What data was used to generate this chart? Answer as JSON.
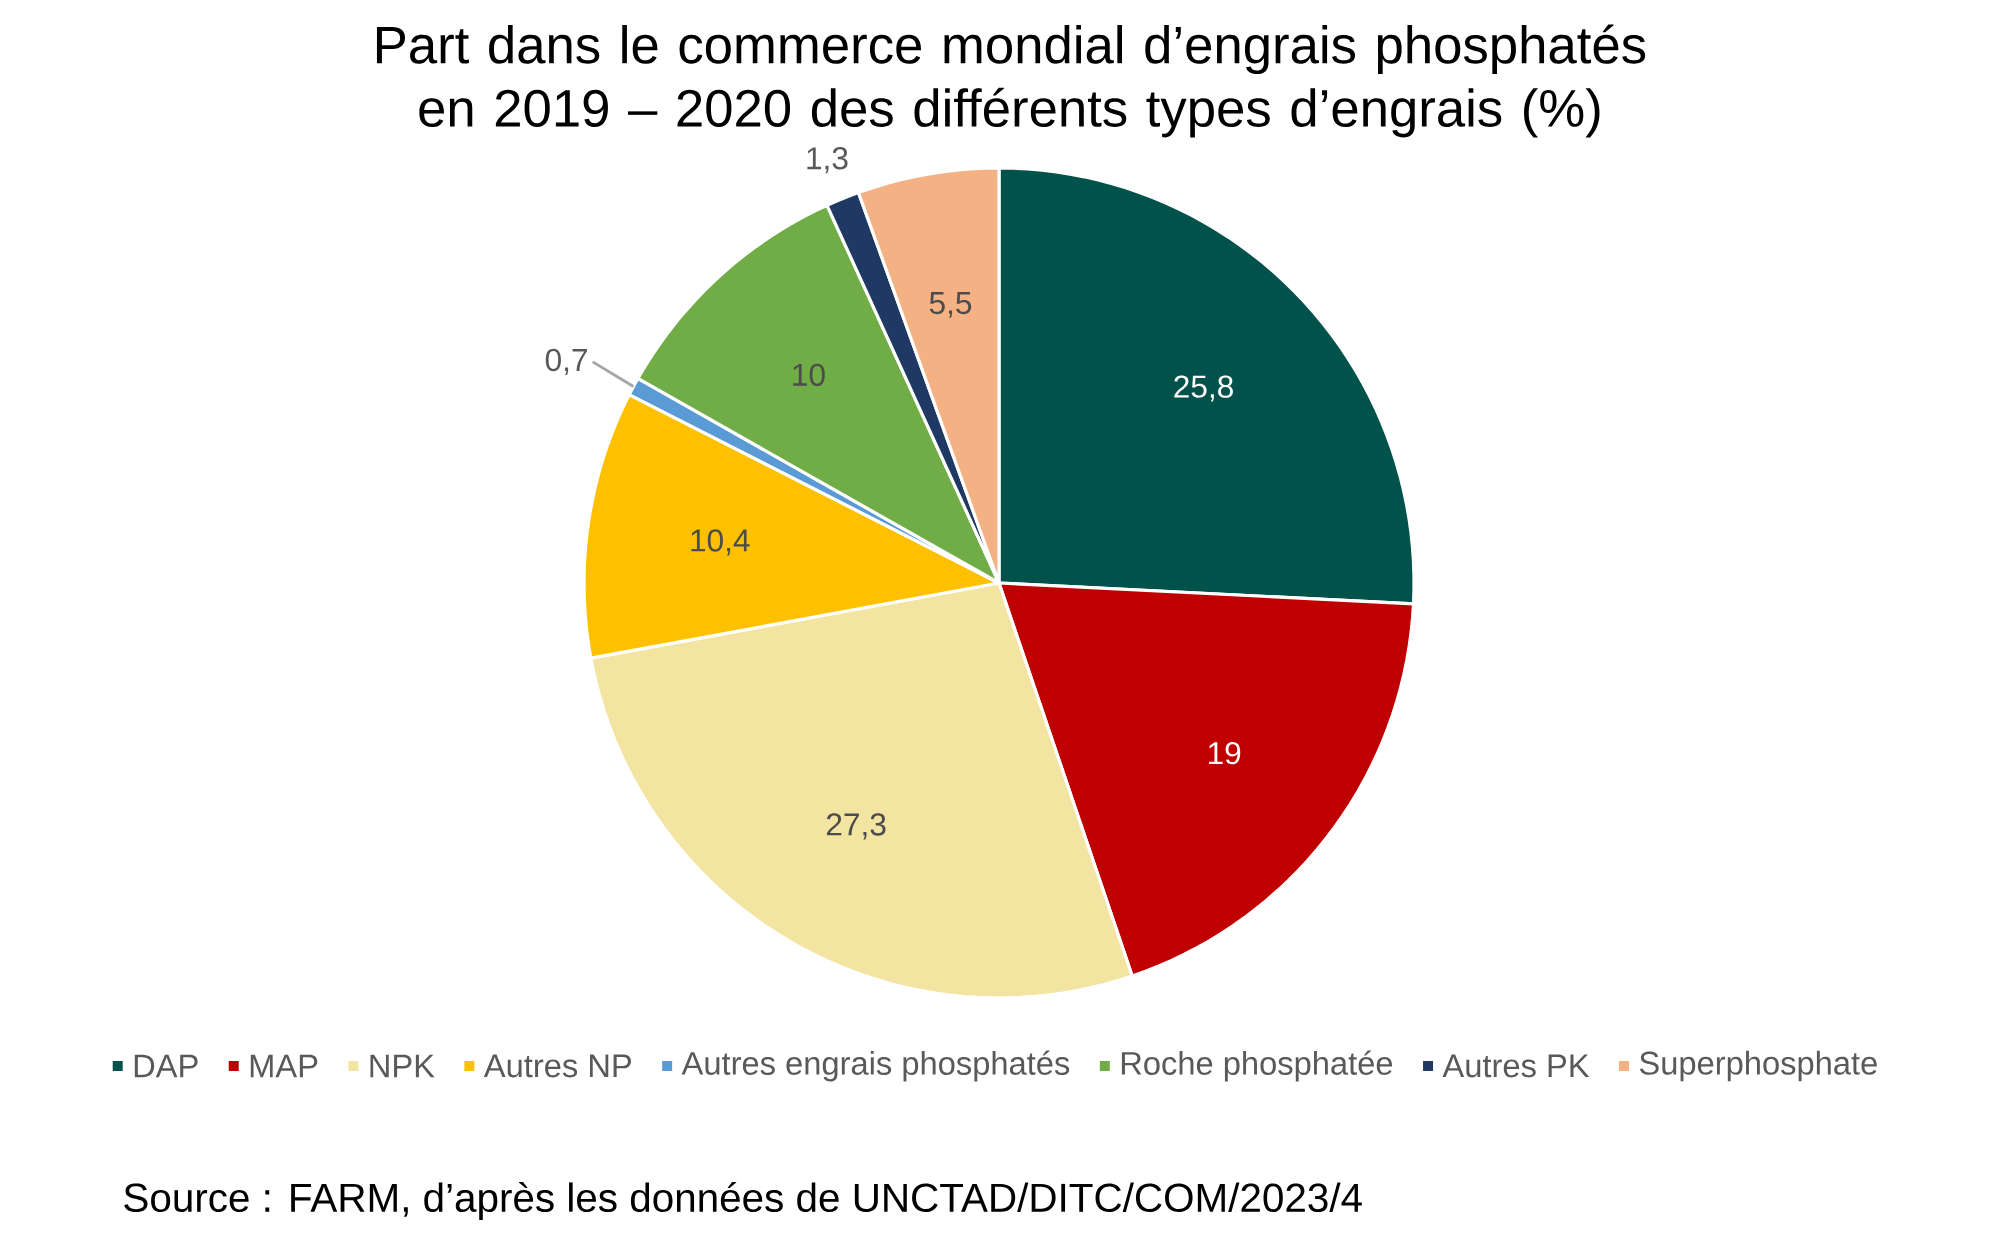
{
  "chart_data": {
    "type": "pie",
    "title": "Part dans le commerce mondial d’engrais phosphatés en 2019 – 2020 des différents types d’engrais (%)",
    "categories": [
      "DAP",
      "MAP",
      "NPK",
      "Autres NP",
      "Autres engrais phosphatés",
      "Roche phosphatée",
      "Autres PK",
      "Superphosphate"
    ],
    "values": [
      25.8,
      19,
      27.3,
      10.4,
      0.7,
      10,
      1.3,
      5.5
    ],
    "value_labels": [
      "25,8",
      "19",
      "27,3",
      "10,4",
      "0,7",
      "10",
      "1,3",
      "5,5"
    ],
    "colors": [
      "#00524a",
      "#c00000",
      "#f3e5a1",
      "#ffc000",
      "#5b9bd5",
      "#70ad47",
      "#1f3864",
      "#f4b183"
    ],
    "legend": "bottom",
    "annotations": [
      "Source : FARM, d’après les données de UNCTAD/DITC/COM/2023/4"
    ]
  }
}
